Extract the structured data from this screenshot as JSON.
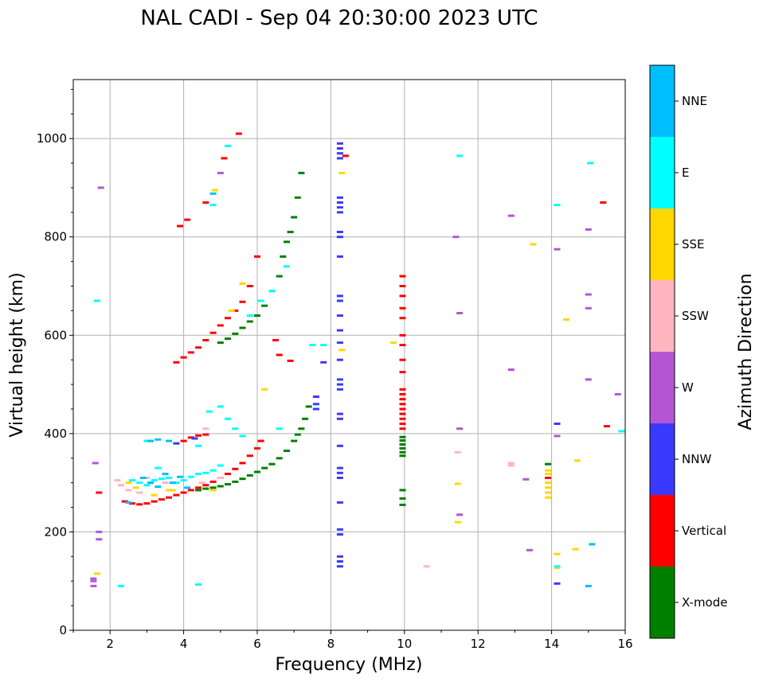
{
  "chart_data": {
    "type": "scatter",
    "title": "NAL CADI - Sep 04 20:30:00 2023 UTC",
    "xlabel": "Frequency (MHz)",
    "ylabel": "Virtual height (km)",
    "xlim": [
      1,
      16
    ],
    "ylim": [
      0,
      1120
    ],
    "xticks": [
      2,
      4,
      6,
      8,
      10,
      12,
      14,
      16
    ],
    "yticks": [
      0,
      200,
      400,
      600,
      800,
      1000
    ],
    "grid": true,
    "colorbar": {
      "title": "Azimuth Direction",
      "categories": [
        {
          "name": "X-mode",
          "color": "#008000"
        },
        {
          "name": "Vertical",
          "color": "#ff0000"
        },
        {
          "name": "NNW",
          "color": "#3a3aff"
        },
        {
          "name": "W",
          "color": "#b455d6"
        },
        {
          "name": "SSW",
          "color": "#ffb6c1"
        },
        {
          "name": "SSE",
          "color": "#ffd700"
        },
        {
          "name": "E",
          "color": "#00ffff"
        },
        {
          "name": "NNE",
          "color": "#00bfff"
        }
      ]
    },
    "series": [
      {
        "name": "X-mode",
        "color": "#008000",
        "points": [
          [
            4.4,
            285
          ],
          [
            4.6,
            288
          ],
          [
            4.8,
            290
          ],
          [
            5.0,
            293
          ],
          [
            5.2,
            297
          ],
          [
            5.4,
            302
          ],
          [
            5.6,
            308
          ],
          [
            5.8,
            315
          ],
          [
            6.0,
            322
          ],
          [
            6.2,
            330
          ],
          [
            6.4,
            338
          ],
          [
            6.6,
            350
          ],
          [
            6.8,
            365
          ],
          [
            7.0,
            385
          ],
          [
            7.1,
            398
          ],
          [
            7.2,
            410
          ],
          [
            7.3,
            430
          ],
          [
            7.4,
            455
          ],
          [
            5.0,
            585
          ],
          [
            5.2,
            593
          ],
          [
            5.4,
            603
          ],
          [
            5.6,
            615
          ],
          [
            5.8,
            628
          ],
          [
            6.0,
            640
          ],
          [
            6.2,
            660
          ],
          [
            6.4,
            690
          ],
          [
            6.6,
            720
          ],
          [
            6.7,
            760
          ],
          [
            6.8,
            790
          ],
          [
            6.9,
            810
          ],
          [
            7.0,
            840
          ],
          [
            7.1,
            880
          ],
          [
            7.2,
            930
          ],
          [
            9.95,
            355
          ],
          [
            9.95,
            362
          ],
          [
            9.95,
            370
          ],
          [
            9.95,
            378
          ],
          [
            9.95,
            386
          ],
          [
            9.95,
            393
          ],
          [
            9.95,
            255
          ],
          [
            9.95,
            268
          ],
          [
            9.95,
            285
          ],
          [
            13.9,
            338
          ]
        ]
      },
      {
        "name": "Vertical",
        "color": "#ff0000",
        "points": [
          [
            2.4,
            262
          ],
          [
            2.6,
            258
          ],
          [
            2.8,
            256
          ],
          [
            3.0,
            258
          ],
          [
            3.2,
            262
          ],
          [
            3.4,
            266
          ],
          [
            3.6,
            270
          ],
          [
            3.8,
            275
          ],
          [
            4.0,
            280
          ],
          [
            4.2,
            285
          ],
          [
            4.4,
            290
          ],
          [
            4.6,
            295
          ],
          [
            4.8,
            302
          ],
          [
            5.0,
            310
          ],
          [
            5.2,
            318
          ],
          [
            5.4,
            328
          ],
          [
            5.6,
            340
          ],
          [
            5.8,
            355
          ],
          [
            6.0,
            370
          ],
          [
            6.1,
            385
          ],
          [
            3.8,
            545
          ],
          [
            4.0,
            555
          ],
          [
            4.2,
            565
          ],
          [
            4.4,
            575
          ],
          [
            4.6,
            590
          ],
          [
            4.8,
            605
          ],
          [
            5.0,
            620
          ],
          [
            5.2,
            635
          ],
          [
            5.4,
            650
          ],
          [
            5.6,
            668
          ],
          [
            5.8,
            700
          ],
          [
            6.0,
            760
          ],
          [
            4.0,
            385
          ],
          [
            4.2,
            392
          ],
          [
            4.4,
            396
          ],
          [
            4.6,
            398
          ],
          [
            3.9,
            822
          ],
          [
            4.1,
            835
          ],
          [
            4.6,
            870
          ],
          [
            5.1,
            960
          ],
          [
            5.5,
            1010
          ],
          [
            8.4,
            965
          ],
          [
            6.5,
            590
          ],
          [
            6.6,
            560
          ],
          [
            6.9,
            548
          ],
          [
            15.4,
            870
          ],
          [
            15.5,
            415
          ],
          [
            1.7,
            280
          ],
          [
            9.95,
            410
          ],
          [
            9.95,
            420
          ],
          [
            9.95,
            430
          ],
          [
            9.95,
            440
          ],
          [
            9.95,
            450
          ],
          [
            9.95,
            460
          ],
          [
            9.95,
            470
          ],
          [
            9.95,
            480
          ],
          [
            9.95,
            490
          ],
          [
            9.95,
            525
          ],
          [
            9.95,
            550
          ],
          [
            9.95,
            580
          ],
          [
            9.95,
            600
          ],
          [
            9.95,
            635
          ],
          [
            9.95,
            655
          ],
          [
            9.95,
            680
          ],
          [
            9.95,
            700
          ],
          [
            9.95,
            720
          ],
          [
            13.9,
            310
          ]
        ]
      },
      {
        "name": "NNW",
        "color": "#3a3aff",
        "points": [
          [
            8.25,
            130
          ],
          [
            8.25,
            140
          ],
          [
            8.25,
            150
          ],
          [
            8.25,
            195
          ],
          [
            8.25,
            205
          ],
          [
            8.25,
            260
          ],
          [
            8.25,
            310
          ],
          [
            8.25,
            320
          ],
          [
            8.25,
            330
          ],
          [
            8.25,
            375
          ],
          [
            8.25,
            430
          ],
          [
            8.25,
            440
          ],
          [
            8.25,
            490
          ],
          [
            8.25,
            500
          ],
          [
            8.25,
            510
          ],
          [
            8.25,
            550
          ],
          [
            8.25,
            585
          ],
          [
            8.25,
            610
          ],
          [
            8.25,
            640
          ],
          [
            8.25,
            670
          ],
          [
            8.25,
            680
          ],
          [
            8.25,
            760
          ],
          [
            8.25,
            800
          ],
          [
            8.25,
            810
          ],
          [
            8.25,
            850
          ],
          [
            8.25,
            860
          ],
          [
            8.25,
            870
          ],
          [
            8.25,
            880
          ],
          [
            8.25,
            960
          ],
          [
            8.25,
            970
          ],
          [
            8.25,
            980
          ],
          [
            8.25,
            990
          ],
          [
            7.6,
            450
          ],
          [
            7.6,
            460
          ],
          [
            7.6,
            475
          ],
          [
            14.15,
            95
          ],
          [
            14.15,
            420
          ],
          [
            4.3,
            390
          ],
          [
            3.8,
            380
          ],
          [
            7.8,
            545
          ]
        ]
      },
      {
        "name": "W",
        "color": "#b455d6",
        "points": [
          [
            1.55,
            90
          ],
          [
            1.55,
            100
          ],
          [
            1.55,
            105
          ],
          [
            1.7,
            185
          ],
          [
            1.7,
            200
          ],
          [
            1.6,
            340
          ],
          [
            1.75,
            900
          ],
          [
            5.0,
            930
          ],
          [
            11.5,
            235
          ],
          [
            11.5,
            410
          ],
          [
            11.5,
            645
          ],
          [
            11.4,
            800
          ],
          [
            12.9,
            530
          ],
          [
            12.9,
            843
          ],
          [
            13.4,
            163
          ],
          [
            13.3,
            307
          ],
          [
            14.15,
            395
          ],
          [
            14.15,
            775
          ],
          [
            15.0,
            510
          ],
          [
            15.0,
            815
          ],
          [
            15.0,
            655
          ],
          [
            15.0,
            683
          ],
          [
            15.8,
            480
          ]
        ]
      },
      {
        "name": "SSW",
        "color": "#ffb6c1",
        "points": [
          [
            2.2,
            305
          ],
          [
            2.3,
            295
          ],
          [
            2.5,
            285
          ],
          [
            2.8,
            280
          ],
          [
            3.0,
            310
          ],
          [
            3.5,
            300
          ],
          [
            4.5,
            300
          ],
          [
            5.0,
            310
          ],
          [
            10.6,
            130
          ],
          [
            11.45,
            362
          ],
          [
            12.9,
            335
          ],
          [
            12.9,
            340
          ],
          [
            4.6,
            410
          ]
        ]
      },
      {
        "name": "SSE",
        "color": "#ffd700",
        "points": [
          [
            1.65,
            115
          ],
          [
            2.5,
            300
          ],
          [
            2.7,
            290
          ],
          [
            3.2,
            275
          ],
          [
            3.6,
            285
          ],
          [
            4.8,
            285
          ],
          [
            5.3,
            650
          ],
          [
            5.6,
            705
          ],
          [
            6.2,
            490
          ],
          [
            8.3,
            570
          ],
          [
            8.3,
            930
          ],
          [
            9.7,
            585
          ],
          [
            11.45,
            220
          ],
          [
            11.45,
            298
          ],
          [
            13.5,
            785
          ],
          [
            13.9,
            270
          ],
          [
            13.9,
            280
          ],
          [
            13.9,
            290
          ],
          [
            13.9,
            300
          ],
          [
            13.9,
            318
          ],
          [
            13.9,
            325
          ],
          [
            14.15,
            155
          ],
          [
            14.15,
            127
          ],
          [
            14.4,
            632
          ],
          [
            14.65,
            165
          ],
          [
            14.7,
            345
          ],
          [
            4.85,
            895
          ],
          [
            3.7,
            285
          ]
        ]
      },
      {
        "name": "E",
        "color": "#00ffff",
        "points": [
          [
            1.65,
            670
          ],
          [
            2.3,
            90
          ],
          [
            2.6,
            305
          ],
          [
            2.8,
            300
          ],
          [
            3.0,
            295
          ],
          [
            3.2,
            305
          ],
          [
            3.4,
            308
          ],
          [
            3.6,
            310
          ],
          [
            3.8,
            300
          ],
          [
            4.0,
            305
          ],
          [
            4.2,
            312
          ],
          [
            4.4,
            318
          ],
          [
            4.6,
            320
          ],
          [
            4.8,
            325
          ],
          [
            5.0,
            335
          ],
          [
            4.4,
            375
          ],
          [
            4.7,
            445
          ],
          [
            5.0,
            455
          ],
          [
            5.2,
            430
          ],
          [
            5.4,
            410
          ],
          [
            5.6,
            395
          ],
          [
            5.8,
            640
          ],
          [
            6.1,
            670
          ],
          [
            6.4,
            690
          ],
          [
            6.8,
            740
          ],
          [
            7.5,
            580
          ],
          [
            7.8,
            580
          ],
          [
            4.4,
            93
          ],
          [
            4.8,
            865
          ],
          [
            5.2,
            985
          ],
          [
            3.0,
            385
          ],
          [
            3.3,
            330
          ],
          [
            6.6,
            410
          ],
          [
            14.15,
            865
          ],
          [
            14.15,
            130
          ],
          [
            11.5,
            965
          ],
          [
            15.05,
            950
          ],
          [
            15.9,
            405
          ]
        ]
      },
      {
        "name": "NNE",
        "color": "#00bfff",
        "points": [
          [
            2.5,
            260
          ],
          [
            2.9,
            310
          ],
          [
            3.1,
            300
          ],
          [
            3.3,
            292
          ],
          [
            3.5,
            318
          ],
          [
            3.7,
            300
          ],
          [
            3.9,
            312
          ],
          [
            4.1,
            290
          ],
          [
            3.1,
            385
          ],
          [
            3.3,
            388
          ],
          [
            3.6,
            385
          ],
          [
            4.8,
            888
          ],
          [
            15.0,
            90
          ],
          [
            15.1,
            175
          ]
        ]
      }
    ]
  }
}
